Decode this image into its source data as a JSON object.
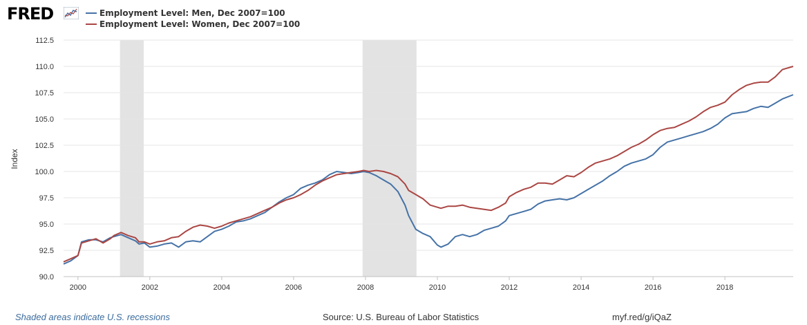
{
  "header": {
    "logo_text": "FRED",
    "logo_icon": "line-chart-icon"
  },
  "footer": {
    "recession_note": "Shaded areas indicate U.S. recessions",
    "source": "Source: U.S. Bureau of Labor Statistics",
    "url": "myf.red/g/iQaZ"
  },
  "colors": {
    "men": "#4572a7",
    "women": "#aa4643",
    "recession": "#e3e3e3",
    "grid": "#e6e6e6",
    "axis_text": "#333333"
  },
  "chart_data": {
    "type": "line",
    "title": "",
    "xlabel": "",
    "ylabel": "Index",
    "xlim": [
      1999.6,
      2019.9
    ],
    "ylim": [
      90.0,
      112.5
    ],
    "y_ticks": [
      "90.0",
      "92.5",
      "95.0",
      "97.5",
      "100.0",
      "102.5",
      "105.0",
      "107.5",
      "110.0",
      "112.5"
    ],
    "x_ticks": [
      "2000",
      "2002",
      "2004",
      "2006",
      "2008",
      "2010",
      "2012",
      "2014",
      "2016",
      "2018"
    ],
    "recessions": [
      [
        2001.17,
        2001.83
      ],
      [
        2007.92,
        2009.42
      ]
    ],
    "series": [
      {
        "name": "Employment Level: Men, Dec 2007=100",
        "color": "#4572a7",
        "points": [
          [
            1999.6,
            91.2
          ],
          [
            1999.8,
            91.5
          ],
          [
            2000.0,
            92.0
          ],
          [
            2000.1,
            93.3
          ],
          [
            2000.3,
            93.5
          ],
          [
            2000.5,
            93.5
          ],
          [
            2000.7,
            93.3
          ],
          [
            2000.9,
            93.7
          ],
          [
            2001.0,
            93.8
          ],
          [
            2001.2,
            94.0
          ],
          [
            2001.4,
            93.7
          ],
          [
            2001.6,
            93.4
          ],
          [
            2001.7,
            93.1
          ],
          [
            2001.85,
            93.2
          ],
          [
            2002.0,
            92.8
          ],
          [
            2002.2,
            92.9
          ],
          [
            2002.4,
            93.1
          ],
          [
            2002.6,
            93.2
          ],
          [
            2002.8,
            92.8
          ],
          [
            2003.0,
            93.3
          ],
          [
            2003.2,
            93.4
          ],
          [
            2003.4,
            93.3
          ],
          [
            2003.6,
            93.8
          ],
          [
            2003.8,
            94.3
          ],
          [
            2004.0,
            94.5
          ],
          [
            2004.2,
            94.8
          ],
          [
            2004.4,
            95.2
          ],
          [
            2004.6,
            95.3
          ],
          [
            2004.8,
            95.5
          ],
          [
            2005.0,
            95.8
          ],
          [
            2005.2,
            96.1
          ],
          [
            2005.4,
            96.6
          ],
          [
            2005.6,
            97.1
          ],
          [
            2005.8,
            97.5
          ],
          [
            2006.0,
            97.8
          ],
          [
            2006.2,
            98.4
          ],
          [
            2006.4,
            98.7
          ],
          [
            2006.6,
            98.9
          ],
          [
            2006.8,
            99.2
          ],
          [
            2007.0,
            99.7
          ],
          [
            2007.2,
            100.0
          ],
          [
            2007.4,
            99.9
          ],
          [
            2007.6,
            99.8
          ],
          [
            2007.8,
            99.9
          ],
          [
            2007.95,
            100.0
          ],
          [
            2008.1,
            99.9
          ],
          [
            2008.3,
            99.6
          ],
          [
            2008.5,
            99.2
          ],
          [
            2008.7,
            98.8
          ],
          [
            2008.9,
            98.1
          ],
          [
            2009.1,
            96.8
          ],
          [
            2009.2,
            95.8
          ],
          [
            2009.4,
            94.5
          ],
          [
            2009.6,
            94.1
          ],
          [
            2009.8,
            93.8
          ],
          [
            2010.0,
            93.0
          ],
          [
            2010.1,
            92.8
          ],
          [
            2010.3,
            93.1
          ],
          [
            2010.5,
            93.8
          ],
          [
            2010.7,
            94.0
          ],
          [
            2010.9,
            93.8
          ],
          [
            2011.1,
            94.0
          ],
          [
            2011.3,
            94.4
          ],
          [
            2011.5,
            94.6
          ],
          [
            2011.7,
            94.8
          ],
          [
            2011.9,
            95.3
          ],
          [
            2012.0,
            95.8
          ],
          [
            2012.2,
            96.0
          ],
          [
            2012.4,
            96.2
          ],
          [
            2012.6,
            96.4
          ],
          [
            2012.8,
            96.9
          ],
          [
            2013.0,
            97.2
          ],
          [
            2013.2,
            97.3
          ],
          [
            2013.4,
            97.4
          ],
          [
            2013.6,
            97.3
          ],
          [
            2013.8,
            97.5
          ],
          [
            2014.0,
            97.9
          ],
          [
            2014.2,
            98.3
          ],
          [
            2014.4,
            98.7
          ],
          [
            2014.6,
            99.1
          ],
          [
            2014.8,
            99.6
          ],
          [
            2015.0,
            100.0
          ],
          [
            2015.2,
            100.5
          ],
          [
            2015.4,
            100.8
          ],
          [
            2015.6,
            101.0
          ],
          [
            2015.8,
            101.2
          ],
          [
            2016.0,
            101.6
          ],
          [
            2016.2,
            102.3
          ],
          [
            2016.4,
            102.8
          ],
          [
            2016.6,
            103.0
          ],
          [
            2016.8,
            103.2
          ],
          [
            2017.0,
            103.4
          ],
          [
            2017.2,
            103.6
          ],
          [
            2017.4,
            103.8
          ],
          [
            2017.6,
            104.1
          ],
          [
            2017.8,
            104.5
          ],
          [
            2018.0,
            105.1
          ],
          [
            2018.2,
            105.5
          ],
          [
            2018.4,
            105.6
          ],
          [
            2018.6,
            105.7
          ],
          [
            2018.8,
            106.0
          ],
          [
            2019.0,
            106.2
          ],
          [
            2019.2,
            106.1
          ],
          [
            2019.4,
            106.5
          ],
          [
            2019.6,
            106.9
          ],
          [
            2019.9,
            107.3
          ]
        ]
      },
      {
        "name": "Employment Level: Women, Dec 2007=100",
        "color": "#aa4643",
        "points": [
          [
            1999.6,
            91.4
          ],
          [
            1999.8,
            91.7
          ],
          [
            2000.0,
            92.0
          ],
          [
            2000.1,
            93.2
          ],
          [
            2000.3,
            93.4
          ],
          [
            2000.5,
            93.6
          ],
          [
            2000.7,
            93.2
          ],
          [
            2000.9,
            93.6
          ],
          [
            2001.0,
            93.9
          ],
          [
            2001.2,
            94.2
          ],
          [
            2001.4,
            93.9
          ],
          [
            2001.6,
            93.7
          ],
          [
            2001.7,
            93.3
          ],
          [
            2001.85,
            93.3
          ],
          [
            2002.0,
            93.1
          ],
          [
            2002.2,
            93.3
          ],
          [
            2002.4,
            93.4
          ],
          [
            2002.6,
            93.7
          ],
          [
            2002.8,
            93.8
          ],
          [
            2003.0,
            94.3
          ],
          [
            2003.2,
            94.7
          ],
          [
            2003.4,
            94.9
          ],
          [
            2003.6,
            94.8
          ],
          [
            2003.8,
            94.6
          ],
          [
            2004.0,
            94.8
          ],
          [
            2004.2,
            95.1
          ],
          [
            2004.4,
            95.3
          ],
          [
            2004.6,
            95.5
          ],
          [
            2004.8,
            95.7
          ],
          [
            2005.0,
            96.0
          ],
          [
            2005.2,
            96.3
          ],
          [
            2005.4,
            96.6
          ],
          [
            2005.6,
            97.0
          ],
          [
            2005.8,
            97.3
          ],
          [
            2006.0,
            97.5
          ],
          [
            2006.2,
            97.8
          ],
          [
            2006.4,
            98.2
          ],
          [
            2006.6,
            98.7
          ],
          [
            2006.8,
            99.1
          ],
          [
            2007.0,
            99.4
          ],
          [
            2007.2,
            99.7
          ],
          [
            2007.4,
            99.8
          ],
          [
            2007.6,
            99.9
          ],
          [
            2007.8,
            100.0
          ],
          [
            2007.95,
            100.1
          ],
          [
            2008.1,
            100.0
          ],
          [
            2008.3,
            100.1
          ],
          [
            2008.5,
            100.0
          ],
          [
            2008.7,
            99.8
          ],
          [
            2008.9,
            99.5
          ],
          [
            2009.1,
            98.8
          ],
          [
            2009.2,
            98.2
          ],
          [
            2009.4,
            97.8
          ],
          [
            2009.6,
            97.4
          ],
          [
            2009.8,
            96.8
          ],
          [
            2010.0,
            96.6
          ],
          [
            2010.1,
            96.5
          ],
          [
            2010.3,
            96.7
          ],
          [
            2010.5,
            96.7
          ],
          [
            2010.7,
            96.8
          ],
          [
            2010.9,
            96.6
          ],
          [
            2011.1,
            96.5
          ],
          [
            2011.3,
            96.4
          ],
          [
            2011.5,
            96.3
          ],
          [
            2011.7,
            96.6
          ],
          [
            2011.9,
            97.0
          ],
          [
            2012.0,
            97.6
          ],
          [
            2012.2,
            98.0
          ],
          [
            2012.4,
            98.3
          ],
          [
            2012.6,
            98.5
          ],
          [
            2012.8,
            98.9
          ],
          [
            2013.0,
            98.9
          ],
          [
            2013.2,
            98.8
          ],
          [
            2013.4,
            99.2
          ],
          [
            2013.6,
            99.6
          ],
          [
            2013.8,
            99.5
          ],
          [
            2014.0,
            99.9
          ],
          [
            2014.2,
            100.4
          ],
          [
            2014.4,
            100.8
          ],
          [
            2014.6,
            101.0
          ],
          [
            2014.8,
            101.2
          ],
          [
            2015.0,
            101.5
          ],
          [
            2015.2,
            101.9
          ],
          [
            2015.4,
            102.3
          ],
          [
            2015.6,
            102.6
          ],
          [
            2015.8,
            103.0
          ],
          [
            2016.0,
            103.5
          ],
          [
            2016.2,
            103.9
          ],
          [
            2016.4,
            104.1
          ],
          [
            2016.6,
            104.2
          ],
          [
            2016.8,
            104.5
          ],
          [
            2017.0,
            104.8
          ],
          [
            2017.2,
            105.2
          ],
          [
            2017.4,
            105.7
          ],
          [
            2017.6,
            106.1
          ],
          [
            2017.8,
            106.3
          ],
          [
            2018.0,
            106.6
          ],
          [
            2018.2,
            107.3
          ],
          [
            2018.4,
            107.8
          ],
          [
            2018.6,
            108.2
          ],
          [
            2018.8,
            108.4
          ],
          [
            2019.0,
            108.5
          ],
          [
            2019.2,
            108.5
          ],
          [
            2019.4,
            109.0
          ],
          [
            2019.6,
            109.7
          ],
          [
            2019.9,
            110.0
          ]
        ]
      }
    ]
  }
}
